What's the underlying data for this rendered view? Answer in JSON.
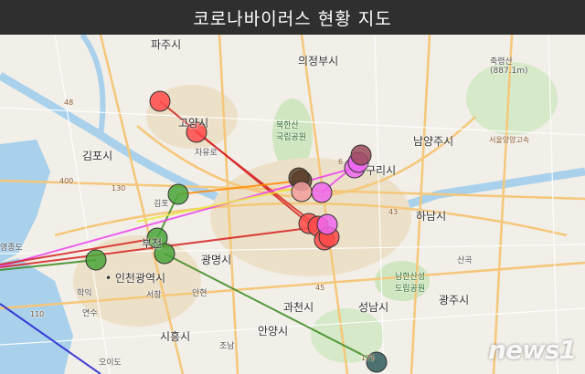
{
  "header": {
    "title": "코로나바이러스 현황 지도"
  },
  "map": {
    "places": [
      {
        "key": "paju",
        "label": "파주시",
        "size": "normal"
      },
      {
        "key": "uijeongbu",
        "label": "의정부시",
        "size": "normal"
      },
      {
        "key": "namyangju",
        "label": "남양주시",
        "size": "normal"
      },
      {
        "key": "goyang",
        "label": "고양시",
        "size": "normal"
      },
      {
        "key": "gimpo",
        "label": "김포시",
        "size": "normal"
      },
      {
        "key": "guri",
        "label": "구리시",
        "size": "normal"
      },
      {
        "key": "hanam",
        "label": "하남시",
        "size": "normal"
      },
      {
        "key": "bucheon",
        "label": "부천",
        "size": "normal"
      },
      {
        "key": "gwangmyeong",
        "label": "광명시",
        "size": "normal"
      },
      {
        "key": "incheon",
        "label": "• 인천광역시",
        "size": "normal"
      },
      {
        "key": "gwacheon",
        "label": "과천시",
        "size": "normal"
      },
      {
        "key": "seongnam",
        "label": "성남시",
        "size": "normal"
      },
      {
        "key": "gwangju",
        "label": "광주시",
        "size": "normal"
      },
      {
        "key": "anyang",
        "label": "안양시",
        "size": "normal"
      },
      {
        "key": "siheung",
        "label": "시흥시",
        "size": "normal"
      },
      {
        "key": "bukhansan",
        "label": "북한산\n국립공원",
        "size": "green"
      },
      {
        "key": "namhansan",
        "label": "남한산성\n도립공원",
        "size": "green"
      },
      {
        "key": "churyeongsan",
        "label": "축령산\n(887.1m)",
        "size": "small"
      },
      {
        "key": "jayuro",
        "label": "자유로",
        "size": "small"
      },
      {
        "key": "haghik",
        "label": "학익",
        "size": "small"
      },
      {
        "key": "yeonsu",
        "label": "연수",
        "size": "small"
      },
      {
        "key": "seochang",
        "label": "서창",
        "size": "small"
      },
      {
        "key": "anhyeon",
        "label": "안현",
        "size": "small"
      },
      {
        "key": "sanbon",
        "label": "조남",
        "size": "small"
      },
      {
        "key": "sangok",
        "label": "산곡",
        "size": "small"
      },
      {
        "key": "oido",
        "label": "오이도",
        "size": "small"
      },
      {
        "key": "yeongjongdo",
        "label": "영종도",
        "size": "small"
      },
      {
        "key": "gimpo_jc",
        "label": "김포",
        "size": "small"
      },
      {
        "key": "seoul_yangyang",
        "label": "서울양양고속",
        "size": "road"
      },
      {
        "key": "road_110",
        "label": "110",
        "size": "road"
      },
      {
        "key": "road_48",
        "label": "48",
        "size": "road"
      },
      {
        "key": "road_43",
        "label": "43",
        "size": "road"
      },
      {
        "key": "road_45",
        "label": "45",
        "size": "road"
      },
      {
        "key": "road_6",
        "label": "6",
        "size": "road"
      },
      {
        "key": "road_130",
        "label": "130",
        "size": "road"
      },
      {
        "key": "road_400",
        "label": "400",
        "size": "road"
      },
      {
        "key": "road_171",
        "label": "171",
        "size": "road"
      }
    ],
    "markers": [
      {
        "key": "m1",
        "color": "#ff4a4a"
      },
      {
        "key": "m2",
        "color": "#ff4a4a"
      },
      {
        "key": "m3",
        "color": "#4aa53a"
      },
      {
        "key": "m4",
        "color": "#4aa53a"
      },
      {
        "key": "m5",
        "color": "#4aa53a"
      },
      {
        "key": "m6",
        "color": "#4aa53a"
      },
      {
        "key": "m7",
        "color": "#ff4a4a"
      },
      {
        "key": "m8",
        "color": "#ff4a4a"
      },
      {
        "key": "m9",
        "color": "#ff4a4a"
      },
      {
        "key": "m10",
        "color": "#ff4a4a"
      },
      {
        "key": "m11",
        "color": "#ee66ee"
      },
      {
        "key": "m12",
        "color": "#ee66ee"
      },
      {
        "key": "m13",
        "color": "#ee66ee"
      },
      {
        "key": "m14",
        "color": "#ee66ee"
      },
      {
        "key": "m15",
        "color": "#6b4a2a"
      },
      {
        "key": "m16",
        "color": "#5a3f2a"
      },
      {
        "key": "m17",
        "color": "#9a4a5a"
      },
      {
        "key": "m18",
        "color": "#2f5a5a"
      },
      {
        "key": "m19",
        "color": "#f4a0a0"
      }
    ],
    "routes": [
      {
        "key": "r1",
        "color": "#d62020"
      },
      {
        "key": "r2",
        "color": "#d62020"
      },
      {
        "key": "r3",
        "color": "#d62020"
      },
      {
        "key": "r4",
        "color": "#3a8a20"
      },
      {
        "key": "r5",
        "color": "#3a8a20"
      },
      {
        "key": "r6",
        "color": "#3a8a20"
      },
      {
        "key": "r7",
        "color": "#ee44ee"
      },
      {
        "key": "r8",
        "color": "#ee44ee"
      },
      {
        "key": "r9",
        "color": "#eaea40"
      },
      {
        "key": "r10",
        "color": "#ff8800"
      },
      {
        "key": "r11",
        "color": "#2020d0"
      },
      {
        "key": "r12",
        "color": "#d62020"
      }
    ]
  },
  "watermark": {
    "text": "news1"
  }
}
